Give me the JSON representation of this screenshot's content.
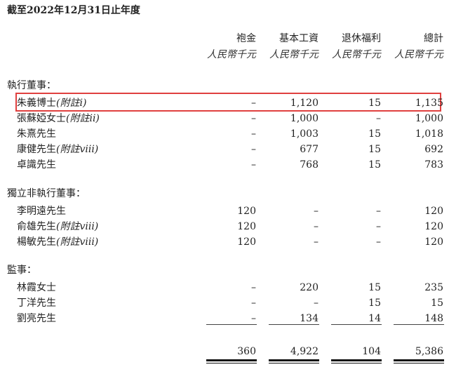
{
  "title": "截至2022年12月31日止年度",
  "columns": [
    {
      "label": "袍金",
      "unit": "人民幣千元"
    },
    {
      "label": "基本工資",
      "unit": "人民幣千元"
    },
    {
      "label": "退休福利",
      "unit": "人民幣千元"
    },
    {
      "label": "總計",
      "unit": "人民幣千元"
    }
  ],
  "sections": [
    {
      "label": "執行董事：",
      "rows": [
        {
          "name": "朱義博士",
          "note": "(附註i)",
          "values": [
            "–",
            "1,120",
            "15",
            "1,135"
          ],
          "highlighted": true
        },
        {
          "name": "張蘇婭女士",
          "note": "(附註ii)",
          "values": [
            "–",
            "1,000",
            "–",
            "1,000"
          ]
        },
        {
          "name": "朱熹先生",
          "note": "",
          "values": [
            "–",
            "1,003",
            "15",
            "1,018"
          ]
        },
        {
          "name": "康健先生",
          "note": "(附註viii)",
          "values": [
            "–",
            "677",
            "15",
            "692"
          ]
        },
        {
          "name": "卓識先生",
          "note": "",
          "values": [
            "–",
            "768",
            "15",
            "783"
          ]
        }
      ]
    },
    {
      "label": "獨立非執行董事：",
      "rows": [
        {
          "name": "李明遠先生",
          "note": "",
          "values": [
            "120",
            "–",
            "–",
            "120"
          ]
        },
        {
          "name": "俞雄先生",
          "note": "(附註viii)",
          "values": [
            "120",
            "–",
            "–",
            "120"
          ]
        },
        {
          "name": "楊敏先生",
          "note": "(附註viii)",
          "values": [
            "120",
            "–",
            "–",
            "120"
          ]
        }
      ]
    },
    {
      "label": "監事：",
      "rows": [
        {
          "name": "林霞女士",
          "note": "",
          "values": [
            "–",
            "220",
            "15",
            "235"
          ]
        },
        {
          "name": "丁洋先生",
          "note": "",
          "values": [
            "–",
            "–",
            "15",
            "15"
          ]
        },
        {
          "name": "劉亮先生",
          "note": "",
          "values": [
            "–",
            "134",
            "14",
            "148"
          ]
        }
      ]
    }
  ],
  "totals": [
    "360",
    "4,922",
    "104",
    "5,386"
  ],
  "highlight_color": "#e0403f"
}
